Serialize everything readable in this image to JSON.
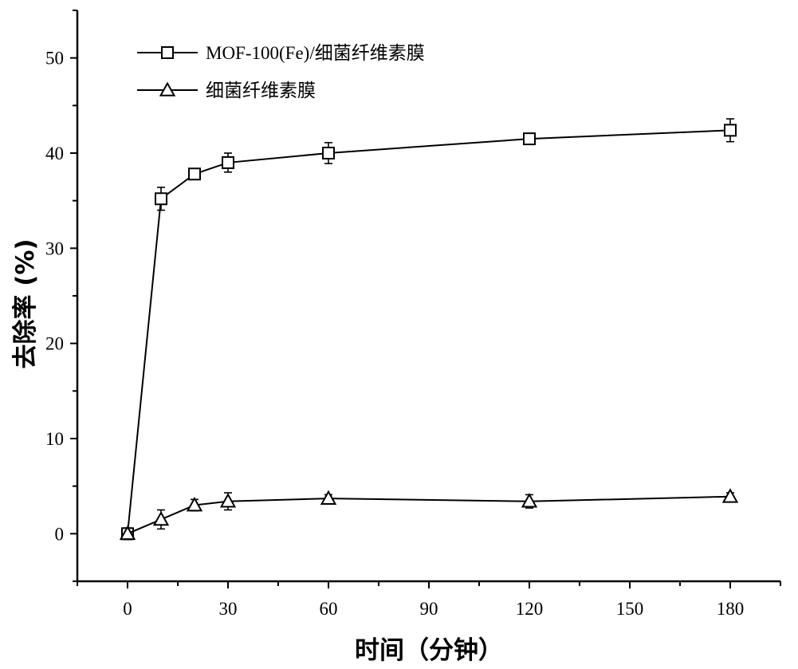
{
  "chart_data": {
    "type": "line",
    "xlabel": "时间（分钟）",
    "ylabel": "去除率 (%)",
    "xlim": [
      -15,
      195
    ],
    "ylim": [
      -5,
      55
    ],
    "x_ticks": [
      0,
      30,
      60,
      90,
      120,
      150,
      180
    ],
    "y_ticks": [
      0,
      10,
      20,
      30,
      40,
      50
    ],
    "grid": false,
    "legend_position": "top-left",
    "series": [
      {
        "name": "MOF-100(Fe)/细菌纤维素膜",
        "marker": "square",
        "x": [
          0,
          10,
          20,
          30,
          60,
          120,
          180
        ],
        "y": [
          0,
          35.2,
          37.8,
          39.0,
          40.0,
          41.5,
          42.4
        ],
        "error": [
          0.6,
          1.2,
          0.3,
          1.0,
          1.1,
          0.3,
          1.2
        ]
      },
      {
        "name": "细菌纤维素膜",
        "marker": "triangle",
        "x": [
          0,
          10,
          20,
          30,
          60,
          120,
          180
        ],
        "y": [
          0,
          1.5,
          3.0,
          3.4,
          3.7,
          3.4,
          3.9
        ],
        "error": [
          0.6,
          1.0,
          0.6,
          0.9,
          0.4,
          0.7,
          0.4
        ]
      }
    ]
  }
}
